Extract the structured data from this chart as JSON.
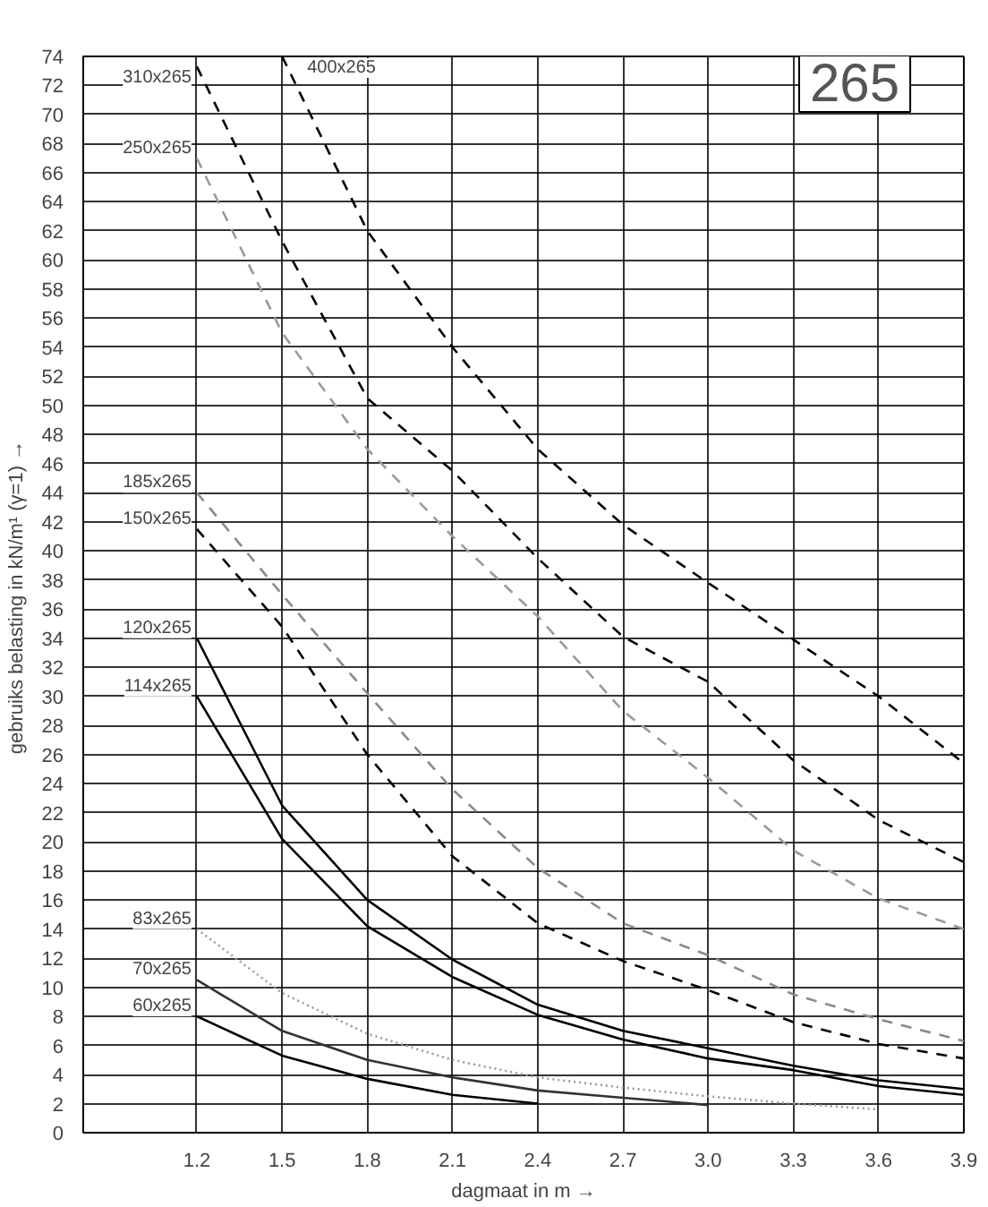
{
  "chart_data": {
    "type": "line",
    "xlabel": "dagmaat in m →",
    "ylabel": "gebruiks belasting in kN/m¹  (γ=1) →",
    "annotations": [
      "265"
    ],
    "x": [
      1.2,
      1.5,
      1.8,
      2.1,
      2.4,
      2.7,
      3.0,
      3.3,
      3.6,
      3.9
    ],
    "series": [
      {
        "name": "400x265",
        "color": "#000000",
        "line_style": "dashed",
        "values": [
          null,
          74,
          62,
          54,
          47,
          41.8,
          37.8,
          33.9,
          30,
          25.4
        ]
      },
      {
        "name": "310x265",
        "color": "#000000",
        "line_style": "dashed",
        "values": [
          73.3,
          61.3,
          50.5,
          45.5,
          39.5,
          34.1,
          31,
          25.6,
          21.5,
          18.6
        ]
      },
      {
        "name": "250x265",
        "color": "#9a9a9a",
        "line_style": "dashed",
        "values": [
          67,
          55,
          47,
          41,
          35.5,
          29,
          24.4,
          19.4,
          16.1,
          14
        ]
      },
      {
        "name": "185x265",
        "color": "#8a8a8a",
        "line_style": "dashed",
        "values": [
          44,
          37,
          30.2,
          23.6,
          18.2,
          14.4,
          12.2,
          9.5,
          7.8,
          6.3
        ]
      },
      {
        "name": "150x265",
        "color": "#000000",
        "line_style": "dashed",
        "values": [
          41.5,
          34.8,
          26,
          19,
          14.4,
          11.8,
          9.8,
          7.6,
          6.1,
          5.1
        ]
      },
      {
        "name": "120x265",
        "color": "#000000",
        "line_style": "solid",
        "values": [
          34,
          22.5,
          16,
          11.9,
          8.8,
          7,
          5.8,
          4.6,
          3.6,
          3
        ]
      },
      {
        "name": "114x265",
        "color": "#000000",
        "line_style": "solid",
        "values": [
          30,
          20.2,
          14.2,
          10.7,
          8.1,
          6.4,
          5.1,
          4.3,
          3.2,
          2.6
        ]
      },
      {
        "name": "83x265",
        "color": "#9a9a9a",
        "line_style": "dotted",
        "values": [
          14,
          9.6,
          6.8,
          5,
          3.8,
          3.1,
          2.5,
          2,
          1.6,
          null
        ]
      },
      {
        "name": "70x265",
        "color": "#333333",
        "line_style": "solid",
        "values": [
          10.5,
          7,
          5,
          3.8,
          2.9,
          2.4,
          1.9,
          null,
          null,
          null
        ]
      },
      {
        "name": "60x265",
        "color": "#000000",
        "line_style": "solid",
        "values": [
          8,
          5.3,
          3.7,
          2.6,
          2,
          null,
          null,
          null,
          null,
          null
        ]
      }
    ],
    "xlim": [
      0.8,
      3.9
    ],
    "ylim": [
      0,
      74
    ],
    "xticks": [
      1.2,
      1.5,
      1.8,
      2.1,
      2.4,
      2.7,
      {
        "value": 3.0,
        "label": "3.0"
      },
      3.3,
      3.6,
      3.9
    ],
    "yticks": [
      0,
      2,
      4,
      6,
      8,
      10,
      12,
      14,
      16,
      18,
      20,
      22,
      24,
      26,
      28,
      30,
      32,
      34,
      36,
      38,
      40,
      42,
      44,
      46,
      48,
      50,
      52,
      54,
      56,
      58,
      60,
      62,
      64,
      66,
      68,
      70,
      72,
      74
    ],
    "grid": true,
    "marker": "none"
  }
}
